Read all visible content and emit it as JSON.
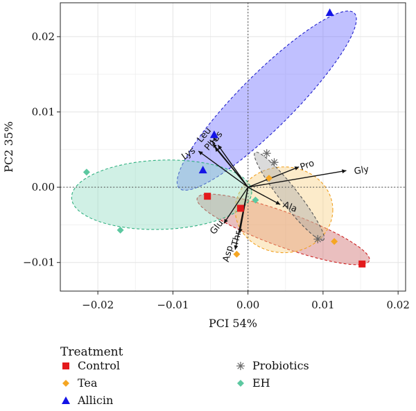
{
  "chart_data": {
    "type": "scatter",
    "xlabel": "PCI 54%",
    "ylabel": "PC2 35%",
    "xlim": [
      -0.025,
      0.021
    ],
    "ylim": [
      -0.0138,
      0.0245
    ],
    "xticks": [
      -0.02,
      -0.01,
      0.0,
      0.01,
      0.02
    ],
    "xtick_labels": [
      "−0.02",
      "−0.01",
      "0.00",
      "0.01",
      "0.02"
    ],
    "yticks": [
      -0.01,
      0.0,
      0.01,
      0.02
    ],
    "ytick_labels": [
      "−0.01",
      "0.00",
      "0.01",
      "0.02"
    ],
    "grid": true,
    "reference_lines": {
      "x": 0,
      "y": 0,
      "style": "dotted"
    },
    "legend": {
      "title": "Treatment",
      "placement": "bottom",
      "entries": [
        {
          "label": "Control",
          "color": "#e31a1c",
          "marker": "square"
        },
        {
          "label": "Tea",
          "color": "#f5a623",
          "marker": "diamond"
        },
        {
          "label": "Allicin",
          "color": "#1414e6",
          "marker": "triangle"
        },
        {
          "label": "Probiotics",
          "color": "#666666",
          "marker": "asterisk"
        },
        {
          "label": "EH",
          "color": "#5cc8a0",
          "marker": "diamond"
        }
      ]
    },
    "series": [
      {
        "name": "Control",
        "color": "#e31a1c",
        "fill": "#d98c8c",
        "marker": "square",
        "points": [
          [
            -0.0054,
            -0.0012
          ],
          [
            -0.001,
            -0.0028
          ],
          [
            0.0152,
            -0.0102
          ]
        ]
      },
      {
        "name": "Tea",
        "color": "#f5a623",
        "fill": "#f5d590",
        "marker": "diamond",
        "points": [
          [
            -0.0015,
            -0.0089
          ],
          [
            0.0028,
            0.0012
          ],
          [
            0.0115,
            -0.0072
          ]
        ]
      },
      {
        "name": "Allicin",
        "color": "#1414e6",
        "fill": "#8080ff",
        "marker": "triangle",
        "points": [
          [
            -0.006,
            0.0023
          ],
          [
            -0.0045,
            0.007
          ],
          [
            0.0109,
            0.0232
          ]
        ]
      },
      {
        "name": "Probiotics",
        "color": "#666666",
        "fill": "#bbbbbb",
        "marker": "asterisk",
        "points": [
          [
            0.0025,
            0.0045
          ],
          [
            0.0035,
            0.0033
          ],
          [
            0.0093,
            -0.0069
          ]
        ]
      },
      {
        "name": "EH",
        "color": "#5cc8a0",
        "fill": "#a8e6cc",
        "marker": "diamond",
        "points": [
          [
            -0.0215,
            0.002
          ],
          [
            -0.017,
            -0.0057
          ],
          [
            0.001,
            -0.0017
          ]
        ]
      }
    ],
    "ellipses": [
      {
        "series": "Control",
        "cx": 0.0047,
        "cy": -0.0056,
        "rx": 0.0122,
        "ry": 0.0023,
        "angle": -20,
        "stroke": "#cc2020",
        "fill": "#cc6666"
      },
      {
        "series": "Tea",
        "cx": 0.0048,
        "cy": -0.003,
        "rx": 0.0065,
        "ry": 0.0057,
        "angle": 0,
        "stroke": "#f0a020",
        "fill": "#f7d080"
      },
      {
        "series": "Allicin",
        "cx": 0.0025,
        "cy": 0.0115,
        "rx": 0.0165,
        "ry": 0.0036,
        "angle": 45,
        "stroke": "#2020cc",
        "fill": "#6a6aff"
      },
      {
        "series": "Probiotics",
        "cx": 0.0055,
        "cy": -0.0012,
        "rx": 0.0074,
        "ry": 0.0012,
        "angle": -52,
        "stroke": "#555555",
        "fill": "#aaaaaa"
      },
      {
        "series": "EH",
        "cx": -0.0115,
        "cy": -0.001,
        "rx": 0.012,
        "ry": 0.0046,
        "angle": 2,
        "stroke": "#30b080",
        "fill": "#90dcc0"
      }
    ],
    "loadings": [
      {
        "label": "Lys",
        "x": -0.0066,
        "y": 0.0048
      },
      {
        "label": "Phe",
        "x": -0.0044,
        "y": 0.0053
      },
      {
        "label": "His",
        "x": -0.004,
        "y": 0.0056
      },
      {
        "label": "Leu",
        "x": -0.0047,
        "y": 0.0058
      },
      {
        "label": "Pro",
        "x": 0.0068,
        "y": 0.0027
      },
      {
        "label": "Gly",
        "x": 0.0131,
        "y": 0.0022
      },
      {
        "label": "Ala",
        "x": 0.0043,
        "y": -0.0023
      },
      {
        "label": "Glu",
        "x": -0.0032,
        "y": -0.0048
      },
      {
        "label": "Thr",
        "x": -0.0011,
        "y": -0.0061
      },
      {
        "label": "Asp",
        "x": -0.0017,
        "y": -0.0083
      }
    ]
  }
}
